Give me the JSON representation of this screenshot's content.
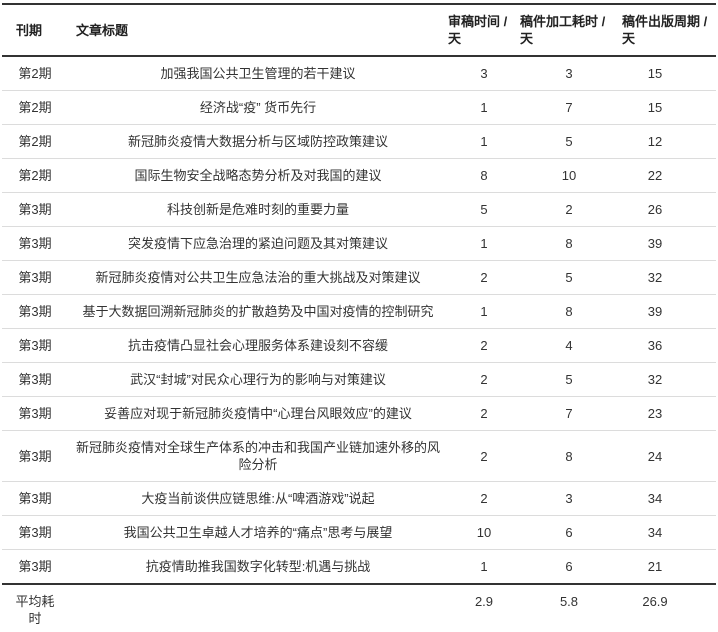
{
  "table": {
    "columns": [
      {
        "key": "issue",
        "label": "刊期"
      },
      {
        "key": "title",
        "label": "文章标题"
      },
      {
        "key": "review",
        "label": "审稿时间 / 天"
      },
      {
        "key": "process",
        "label": "稿件加工耗时 / 天"
      },
      {
        "key": "cycle",
        "label": "稿件出版周期 / 天"
      }
    ],
    "rows": [
      {
        "issue": "第2期",
        "title": "加强我国公共卫生管理的若干建议",
        "review": "3",
        "process": "3",
        "cycle": "15"
      },
      {
        "issue": "第2期",
        "title": "经济战“疫” 货币先行",
        "review": "1",
        "process": "7",
        "cycle": "15"
      },
      {
        "issue": "第2期",
        "title": "新冠肺炎疫情大数据分析与区域防控政策建议",
        "review": "1",
        "process": "5",
        "cycle": "12"
      },
      {
        "issue": "第2期",
        "title": "国际生物安全战略态势分析及对我国的建议",
        "review": "8",
        "process": "10",
        "cycle": "22"
      },
      {
        "issue": "第3期",
        "title": "科技创新是危难时刻的重要力量",
        "review": "5",
        "process": "2",
        "cycle": "26"
      },
      {
        "issue": "第3期",
        "title": "突发疫情下应急治理的紧迫问题及其对策建议",
        "review": "1",
        "process": "8",
        "cycle": "39"
      },
      {
        "issue": "第3期",
        "title": "新冠肺炎疫情对公共卫生应急法治的重大挑战及对策建议",
        "review": "2",
        "process": "5",
        "cycle": "32"
      },
      {
        "issue": "第3期",
        "title": "基于大数据回溯新冠肺炎的扩散趋势及中国对疫情的控制研究",
        "review": "1",
        "process": "8",
        "cycle": "39"
      },
      {
        "issue": "第3期",
        "title": "抗击疫情凸显社会心理服务体系建设刻不容缓",
        "review": "2",
        "process": "4",
        "cycle": "36"
      },
      {
        "issue": "第3期",
        "title": "武汉“封城”对民众心理行为的影响与对策建议",
        "review": "2",
        "process": "5",
        "cycle": "32"
      },
      {
        "issue": "第3期",
        "title": "妥善应对现于新冠肺炎疫情中“心理台风眼效应”的建议",
        "review": "2",
        "process": "7",
        "cycle": "23"
      },
      {
        "issue": "第3期",
        "title": "新冠肺炎疫情对全球生产体系的冲击和我国产业链加速外移的风险分析",
        "review": "2",
        "process": "8",
        "cycle": "24"
      },
      {
        "issue": "第3期",
        "title": "大疫当前谈供应链思维:从“啤酒游戏”说起",
        "review": "2",
        "process": "3",
        "cycle": "34"
      },
      {
        "issue": "第3期",
        "title": "我国公共卫生卓越人才培养的“痛点”思考与展望",
        "review": "10",
        "process": "6",
        "cycle": "34"
      },
      {
        "issue": "第3期",
        "title": "抗疫情助推我国数字化转型:机遇与挑战",
        "review": "1",
        "process": "6",
        "cycle": "21"
      }
    ],
    "footer": {
      "label": "平均耗时",
      "review": "2.9",
      "process": "5.8",
      "cycle": "26.9"
    }
  },
  "colors": {
    "text": "#333333",
    "heavy_rule": "#333333",
    "light_rule": "#dcdcdc",
    "background": "#ffffff"
  }
}
